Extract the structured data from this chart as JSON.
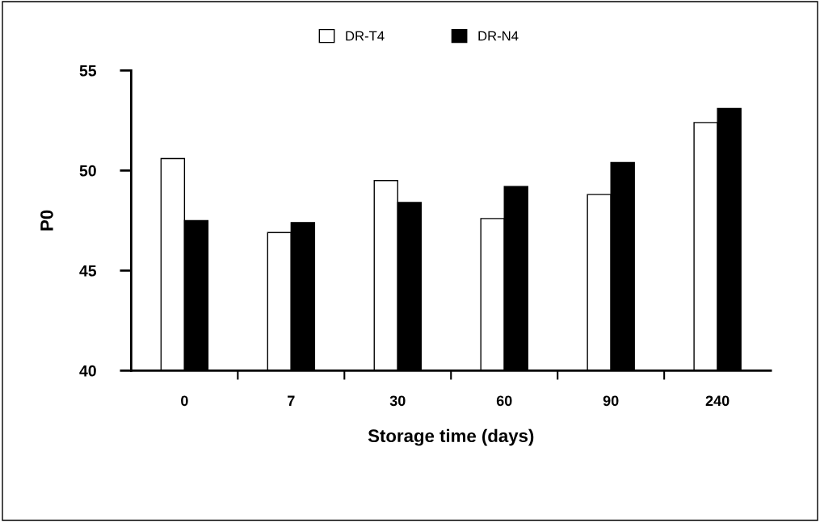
{
  "chart_data": {
    "type": "bar",
    "xlabel": "Storage time (days)",
    "ylabel": "P0",
    "categories": [
      "0",
      "7",
      "30",
      "60",
      "90",
      "240"
    ],
    "series": [
      {
        "name": "DR-T4",
        "color": "#ffffff",
        "values": [
          50.6,
          46.9,
          49.5,
          47.6,
          48.8,
          52.4
        ]
      },
      {
        "name": "DR-N4",
        "color": "#000000",
        "values": [
          47.5,
          47.4,
          48.4,
          49.2,
          50.4,
          53.1
        ]
      }
    ],
    "ylim": [
      40,
      55
    ],
    "yticks": [
      40,
      45,
      50,
      55
    ],
    "grid": false,
    "legend": "top"
  }
}
